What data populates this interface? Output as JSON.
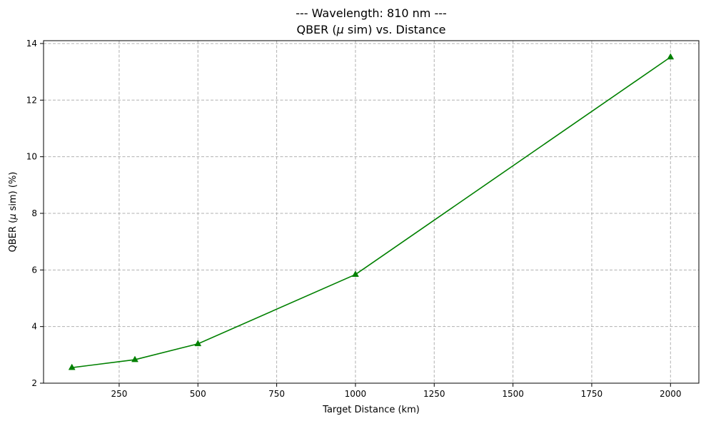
{
  "chart_data": {
    "type": "line",
    "title_line1": "--- Wavelength: 810 nm ---",
    "title_line2_prefix": "QBER (",
    "title_line2_mu": "μ",
    "title_line2_suffix": " sim) vs. Distance",
    "xlabel": "Target Distance (km)",
    "ylabel_prefix": "QBER (",
    "ylabel_mu": "μ",
    "ylabel_suffix": " sim) (%)",
    "x": [
      100,
      300,
      500,
      1000,
      2000
    ],
    "series": [
      {
        "values": [
          2.55,
          2.83,
          3.39,
          5.84,
          13.52
        ],
        "color": "#008000",
        "marker": "triangle-up"
      }
    ],
    "xlim": [
      10,
      2090
    ],
    "ylim": [
      2.0,
      14.1
    ],
    "xticks": [
      250,
      500,
      750,
      1000,
      1250,
      1500,
      1750,
      2000
    ],
    "yticks": [
      2,
      4,
      6,
      8,
      10,
      12,
      14
    ],
    "grid": true,
    "grid_color": "#b0b0b0"
  }
}
